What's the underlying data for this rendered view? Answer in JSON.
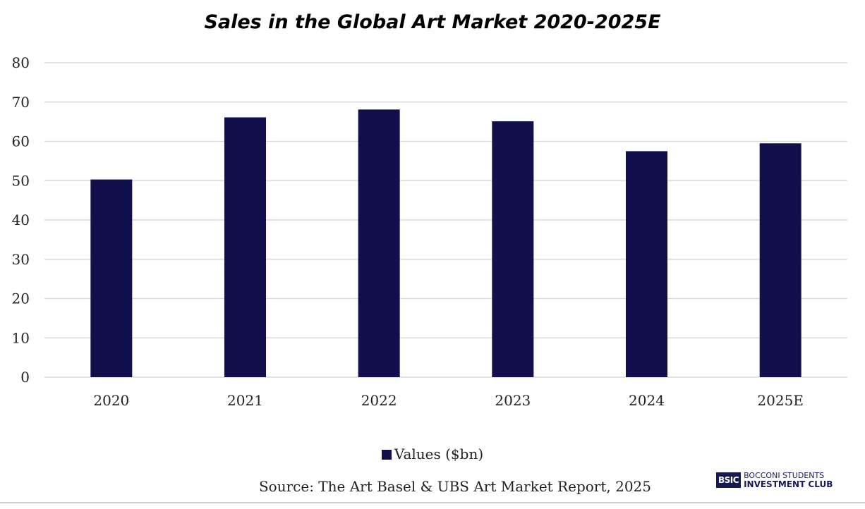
{
  "chart_data": {
    "type": "bar",
    "title": "Sales in the Global Art Market 2020-2025E",
    "categories": [
      "2020",
      "2021",
      "2022",
      "2023",
      "2024",
      "2025E"
    ],
    "series": [
      {
        "name": "Values ($bn)",
        "values": [
          50.3,
          66.1,
          68.1,
          65.1,
          57.5,
          59.5
        ],
        "color": "#120f4d"
      }
    ],
    "yticks": [
      "0",
      "10",
      "20",
      "30",
      "40",
      "50",
      "60",
      "70",
      "80"
    ],
    "ylim": [
      0,
      80
    ],
    "grid": true,
    "legend_position": "bottom"
  },
  "source": "Source:  The Art Basel & UBS Art Market Report, 2025",
  "logo": {
    "abbr": "BSIC",
    "line1": "BOCCONI STUDENTS",
    "line2": "INVESTMENT CLUB",
    "color": "#151a55"
  }
}
